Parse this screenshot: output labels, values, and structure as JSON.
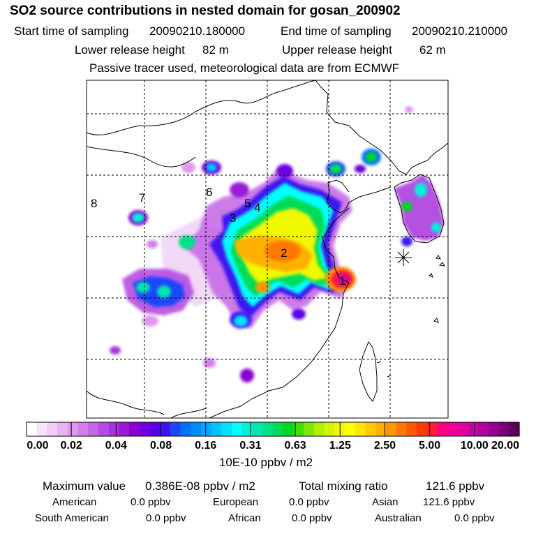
{
  "title": "SO2 source contributions in nested domain for gosan_200902",
  "header": {
    "start_label": "Start time of sampling",
    "start_value": "20090210.180000",
    "end_label": "End time of sampling",
    "end_value": "20090210.210000",
    "lower_label": "Lower release height",
    "lower_value": "82 m",
    "upper_label": "Upper release height",
    "upper_value": "62 m",
    "note": "Passive tracer used, meteorological data are from ECMWF"
  },
  "map": {
    "region_labels": [
      "1",
      "2",
      "3",
      "4",
      "5",
      "6",
      "7",
      "8"
    ],
    "receptor_marker": "asterisk-marker"
  },
  "colorbar": {
    "tick_labels": [
      "0.00",
      "0.02",
      "0.04",
      "0.08",
      "0.16",
      "0.31",
      "0.63",
      "1.25",
      "2.50",
      "5.00",
      "10.00",
      "20.00"
    ],
    "units": "10E-10 ppbv / m2",
    "colors": [
      "#ffffff",
      "#f8e4fa",
      "#f0ccf6",
      "#e6b2f2",
      "#dd99ee",
      "#d07fea",
      "#c466e6",
      "#b64de2",
      "#a833de",
      "#9a1ad8",
      "#8c00d4",
      "#7000e0",
      "#5a00e8",
      "#3c14f0",
      "#1e46f8",
      "#0070ff",
      "#008cff",
      "#00a8ff",
      "#00c4ff",
      "#00e0ff",
      "#00ffff",
      "#00f0d8",
      "#00e6b0",
      "#00e088",
      "#00dc58",
      "#00d820",
      "#40e000",
      "#80e800",
      "#b0f000",
      "#d8f400",
      "#f0f800",
      "#ffff00",
      "#ffe600",
      "#ffcc00",
      "#ffb000",
      "#ff9600",
      "#ff7800",
      "#ff5a00",
      "#ff3c00",
      "#ff1e3c",
      "#ff0080",
      "#f00090",
      "#e0009a",
      "#c800a0",
      "#b000a0",
      "#96008c",
      "#7a0078",
      "#5a005a"
    ]
  },
  "stats": {
    "max_label": "Maximum value",
    "max_value": "0.386E-08 ppbv / m2",
    "total_label": "Total mixing ratio",
    "total_value": "121.6 ppbv",
    "american_label": "American",
    "american_value": "0.0 ppbv",
    "european_label": "European",
    "european_value": "0.0 ppbv",
    "asian_label": "Asian",
    "asian_value": "121.6 ppbv",
    "south_american_label": "South American",
    "south_american_value": "0.0 ppbv",
    "african_label": "African",
    "african_value": "0.0 ppbv",
    "australian_label": "Australian",
    "australian_value": "0.0 ppbv"
  }
}
